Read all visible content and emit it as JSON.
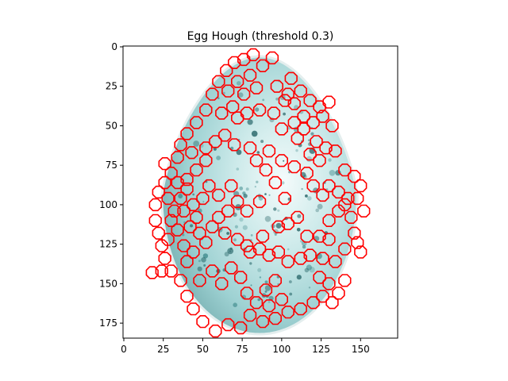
{
  "chart_data": {
    "type": "scatter",
    "title": "Egg Hough (threshold 0.3)",
    "xlabel": "",
    "ylabel": "",
    "xlim": [
      -0.5,
      173.5
    ],
    "ylim": [
      184.5,
      -0.5
    ],
    "x_ticks": [
      0,
      25,
      50,
      75,
      100,
      125,
      150
    ],
    "y_ticks": [
      0,
      25,
      50,
      75,
      100,
      125,
      150,
      175
    ],
    "x_tick_labels": [
      "0",
      "25",
      "50",
      "75",
      "100",
      "125",
      "150"
    ],
    "y_tick_labels": [
      "0",
      "25",
      "50",
      "75",
      "100",
      "125",
      "150",
      "175"
    ],
    "grid": false,
    "background_image": "egg photo with cyan-teal speckled shell on white background",
    "image_egg": {
      "center": [
        86,
        94
      ],
      "radius_x": 62,
      "radius_y_top": 88,
      "radius_y_bottom": 88
    },
    "circle_color": "#ff0000",
    "circle_radius": 4,
    "circle_sides": 8,
    "series": [
      {
        "values": [
          [
            82,
            5
          ],
          [
            76,
            8
          ],
          [
            70,
            10
          ],
          [
            88,
            12
          ],
          [
            65,
            15
          ],
          [
            94,
            7
          ],
          [
            80,
            18
          ],
          [
            72,
            22
          ],
          [
            60,
            22
          ],
          [
            56,
            30
          ],
          [
            66,
            28
          ],
          [
            76,
            30
          ],
          [
            84,
            26
          ],
          [
            69,
            38
          ],
          [
            72,
            45
          ],
          [
            62,
            42
          ],
          [
            78,
            42
          ],
          [
            86,
            40
          ],
          [
            52,
            40
          ],
          [
            46,
            48
          ],
          [
            40,
            55
          ],
          [
            36,
            62
          ],
          [
            43,
            67
          ],
          [
            97,
            25
          ],
          [
            104,
            30
          ],
          [
            108,
            36
          ],
          [
            102,
            34
          ],
          [
            95,
            42
          ],
          [
            118,
            34
          ],
          [
            124,
            38
          ],
          [
            130,
            35
          ],
          [
            126,
            44
          ],
          [
            120,
            48
          ],
          [
            132,
            50
          ],
          [
            114,
            52
          ],
          [
            110,
            58
          ],
          [
            122,
            60
          ],
          [
            128,
            64
          ],
          [
            118,
            68
          ],
          [
            124,
            72
          ],
          [
            134,
            66
          ],
          [
            140,
            78
          ],
          [
            146,
            82
          ],
          [
            150,
            88
          ],
          [
            148,
            96
          ],
          [
            152,
            104
          ],
          [
            144,
            108
          ],
          [
            140,
            100
          ],
          [
            146,
            118
          ],
          [
            148,
            124
          ],
          [
            150,
            130
          ],
          [
            140,
            128
          ],
          [
            134,
            136
          ],
          [
            126,
            134
          ],
          [
            118,
            132
          ],
          [
            124,
            146
          ],
          [
            130,
            150
          ],
          [
            136,
            156
          ],
          [
            140,
            148
          ],
          [
            132,
            162
          ],
          [
            126,
            158
          ],
          [
            120,
            162
          ],
          [
            112,
            166
          ],
          [
            104,
            168
          ],
          [
            96,
            172
          ],
          [
            88,
            174
          ],
          [
            80,
            170
          ],
          [
            74,
            178
          ],
          [
            66,
            176
          ],
          [
            58,
            180
          ],
          [
            50,
            174
          ],
          [
            44,
            166
          ],
          [
            40,
            158
          ],
          [
            36,
            148
          ],
          [
            30,
            142
          ],
          [
            26,
            134
          ],
          [
            24,
            126
          ],
          [
            22,
            118
          ],
          [
            20,
            110
          ],
          [
            20,
            100
          ],
          [
            22,
            92
          ],
          [
            26,
            86
          ],
          [
            30,
            80
          ],
          [
            28,
            96
          ],
          [
            32,
            104
          ],
          [
            34,
            116
          ],
          [
            38,
            126
          ],
          [
            40,
            136
          ],
          [
            30,
            110
          ],
          [
            36,
            96
          ],
          [
            40,
            90
          ],
          [
            34,
            86
          ],
          [
            44,
            100
          ],
          [
            28,
            122
          ],
          [
            24,
            142
          ],
          [
            18,
            143
          ],
          [
            44,
            130
          ],
          [
            48,
            148
          ],
          [
            56,
            142
          ],
          [
            62,
            150
          ],
          [
            68,
            140
          ],
          [
            74,
            146
          ],
          [
            78,
            156
          ],
          [
            84,
            162
          ],
          [
            90,
            154
          ],
          [
            96,
            148
          ],
          [
            100,
            160
          ],
          [
            92,
            164
          ],
          [
            80,
            130
          ],
          [
            86,
            128
          ],
          [
            92,
            132
          ],
          [
            98,
            130
          ],
          [
            104,
            136
          ],
          [
            112,
            134
          ],
          [
            72,
            122
          ],
          [
            78,
            126
          ],
          [
            88,
            120
          ],
          [
            64,
            118
          ],
          [
            56,
            114
          ],
          [
            60,
            108
          ],
          [
            66,
            104
          ],
          [
            60,
            94
          ],
          [
            68,
            88
          ],
          [
            72,
            98
          ],
          [
            78,
            104
          ],
          [
            86,
            98
          ],
          [
            98,
            114
          ],
          [
            104,
            112
          ],
          [
            52,
            72
          ],
          [
            46,
            78
          ],
          [
            40,
            84
          ],
          [
            54,
            88
          ],
          [
            106,
            20
          ],
          [
            112,
            28
          ],
          [
            100,
            52
          ],
          [
            108,
            48
          ],
          [
            114,
            44
          ],
          [
            52,
            64
          ],
          [
            58,
            60
          ],
          [
            64,
            56
          ],
          [
            70,
            62
          ],
          [
            80,
            64
          ],
          [
            130,
            88
          ],
          [
            136,
            92
          ],
          [
            142,
            96
          ],
          [
            136,
            104
          ],
          [
            130,
            110
          ],
          [
            124,
            120
          ],
          [
            130,
            122
          ],
          [
            116,
            120
          ],
          [
            110,
            108
          ],
          [
            102,
            96
          ],
          [
            96,
            86
          ],
          [
            90,
            78
          ],
          [
            84,
            72
          ],
          [
            92,
            66
          ],
          [
            100,
            72
          ],
          [
            108,
            76
          ],
          [
            116,
            80
          ],
          [
            120,
            88
          ],
          [
            126,
            94
          ],
          [
            48,
            118
          ],
          [
            52,
            124
          ],
          [
            46,
            108
          ],
          [
            42,
            114
          ],
          [
            38,
            104
          ],
          [
            50,
            96
          ],
          [
            34,
            70
          ],
          [
            26,
            74
          ]
        ]
      }
    ]
  }
}
